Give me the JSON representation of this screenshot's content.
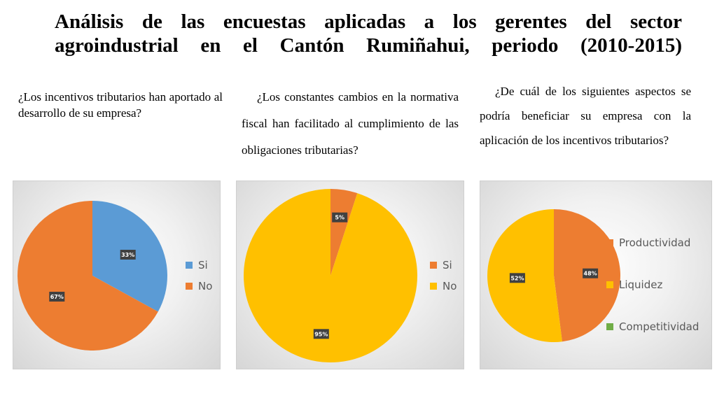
{
  "title": {
    "line1": "Análisis de las encuestas aplicadas a los gerentes del sector",
    "line2": "agroindustrial en el Cantón Rumiñahui, periodo (2010-2015)"
  },
  "questions": {
    "q1": "¿Los incentivos tributarios han aportado al desarrollo de su empresa?",
    "q2": "¿Los constantes cambios en la normativa fiscal han facilitado al cumplimiento de las obligaciones tributarias?",
    "q3": "¿De cuál de los siguientes aspectos se podría beneficiar su empresa con la aplicación de los incentivos tributarios?"
  },
  "legends": {
    "chart1": [
      "Si",
      "No"
    ],
    "chart2": [
      "Si",
      "No"
    ],
    "chart3": [
      "Productividad",
      "Liquidez",
      "Competitividad"
    ]
  },
  "chart_data": [
    {
      "type": "pie",
      "title": "",
      "categories": [
        "Si",
        "No"
      ],
      "values": [
        33,
        67
      ],
      "labels": [
        "33%",
        "67%"
      ],
      "colors": [
        "#5b9bd5",
        "#ed7d31"
      ],
      "legend_placement": "right"
    },
    {
      "type": "pie",
      "title": "",
      "categories": [
        "Si",
        "No"
      ],
      "values": [
        5,
        95
      ],
      "labels": [
        "5%",
        "95%"
      ],
      "colors": [
        "#ed7d31",
        "#ffc000"
      ],
      "legend_placement": "right"
    },
    {
      "type": "pie",
      "title": "",
      "categories": [
        "Productividad",
        "Liquidez",
        "Competitividad"
      ],
      "values": [
        48,
        52,
        0
      ],
      "labels": [
        "48%",
        "52%",
        ""
      ],
      "colors": [
        "#ed7d31",
        "#ffc000",
        "#70ad47"
      ],
      "legend_placement": "right"
    }
  ]
}
